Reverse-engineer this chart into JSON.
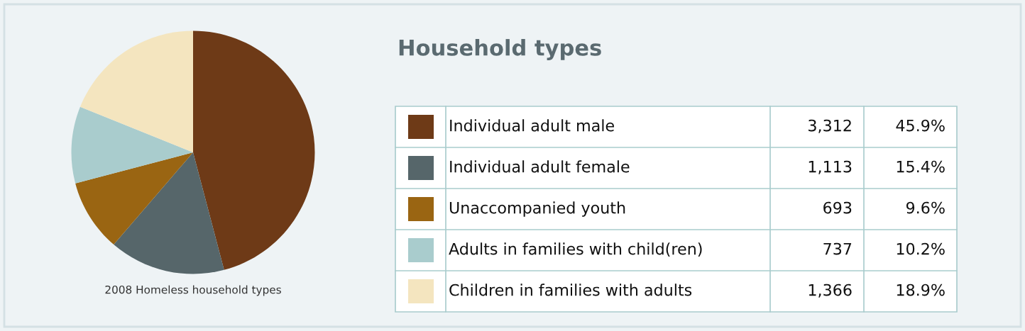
{
  "chart_data": {
    "type": "pie",
    "title": "Household types",
    "categories": [
      "Individual adult male",
      "Individual adult female",
      "Unaccompanied youth",
      "Adults in families with child(ren)",
      "Children in families with adults"
    ],
    "values": [
      45.9,
      15.4,
      9.6,
      10.2,
      18.9
    ],
    "value_labels": [
      "45.9%",
      "15.4%",
      "9.6%",
      "10.2%",
      "18.9%"
    ],
    "colors": [
      "#6e3a17",
      "#56666a",
      "#9a6512",
      "#a9cccd",
      "#f4e5bf"
    ],
    "legend": "right",
    "annotations": [
      "2008 Homeless household types",
      "3,312",
      "1,113",
      "693",
      "737",
      "1,366"
    ]
  }
}
